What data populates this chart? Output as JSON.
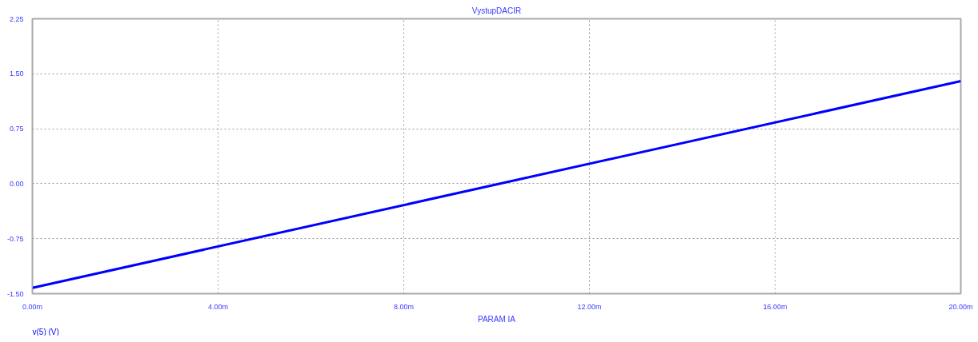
{
  "chart_data": {
    "type": "line",
    "title": "VystupDACIR",
    "xlabel": "PARAM IA",
    "x": [
      0,
      10,
      20
    ],
    "series": [
      {
        "name": "v(5) (V)",
        "color": "#0000ff",
        "values": [
          -1.42,
          -0.01,
          1.4
        ]
      }
    ],
    "xlim": [
      0,
      20
    ],
    "xticks": [
      {
        "value": 0,
        "label": "0.00m"
      },
      {
        "value": 4,
        "label": "4.00m"
      },
      {
        "value": 8,
        "label": "8.00m"
      },
      {
        "value": 12,
        "label": "12.00m"
      },
      {
        "value": 16,
        "label": "16.00m"
      },
      {
        "value": 20,
        "label": "20.00m"
      }
    ],
    "ylim": [
      -1.5,
      2.25
    ],
    "yticks": [
      {
        "value": -1.5,
        "label": "-1.50"
      },
      {
        "value": -0.75,
        "label": "-0.75"
      },
      {
        "value": 0,
        "label": "0.00"
      },
      {
        "value": 0.75,
        "label": "0.75"
      },
      {
        "value": 1.5,
        "label": "1.50"
      },
      {
        "value": 2.25,
        "label": "2.25"
      }
    ],
    "grid": true,
    "legend": "bottom left",
    "line_style": "solid",
    "marker": "none"
  }
}
